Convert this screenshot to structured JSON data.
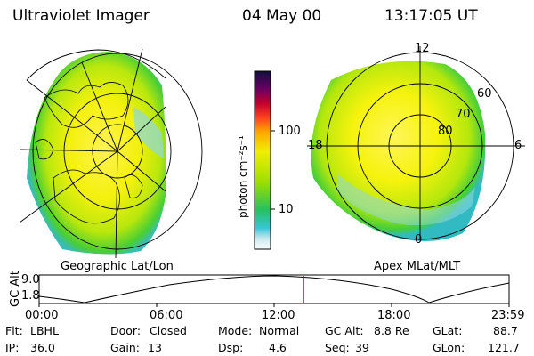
{
  "header": {
    "title": "Ultraviolet Imager",
    "date": "04 May 00",
    "time": "13:17:05 UT"
  },
  "colorbar": {
    "unit_label": "photon cm⁻²s⁻¹",
    "ticks": [
      "100",
      "10"
    ]
  },
  "panels": {
    "geo_label": "Geographic Lat/Lon",
    "apex_label": "Apex MLat/MLT",
    "mlt_ticks": [
      "12",
      "18",
      "6",
      "0"
    ],
    "mlat_ticks": [
      "60",
      "70",
      "80"
    ]
  },
  "orbit": {
    "ylabel": "GC Alt",
    "y_ticks": [
      "9.0",
      "1.8"
    ],
    "x_ticks": [
      "00:00",
      "06:00",
      "12:00",
      "18:00",
      "23:59"
    ]
  },
  "status": {
    "filter_label": "Flt:",
    "filter_value": "LBHL",
    "ip_label": "IP:",
    "ip_value": "36.0",
    "door_label": "Door:",
    "door_value": "Closed",
    "gain_label": "Gain:",
    "gain_value": "13",
    "mode_label": "Mode:",
    "mode_value": "Normal",
    "dsp_label": "Dsp:",
    "dsp_value": "4.6",
    "gcalt_label": "GC Alt:",
    "gcalt_value": "8.8 Re",
    "seq_label": "Seq:",
    "seq_value": "39",
    "glat_label": "GLat:",
    "glat_value": "88.7",
    "glon_label": "GLon:",
    "glon_value": "121.7"
  },
  "colors": {
    "accent_marker": "#e00000"
  }
}
